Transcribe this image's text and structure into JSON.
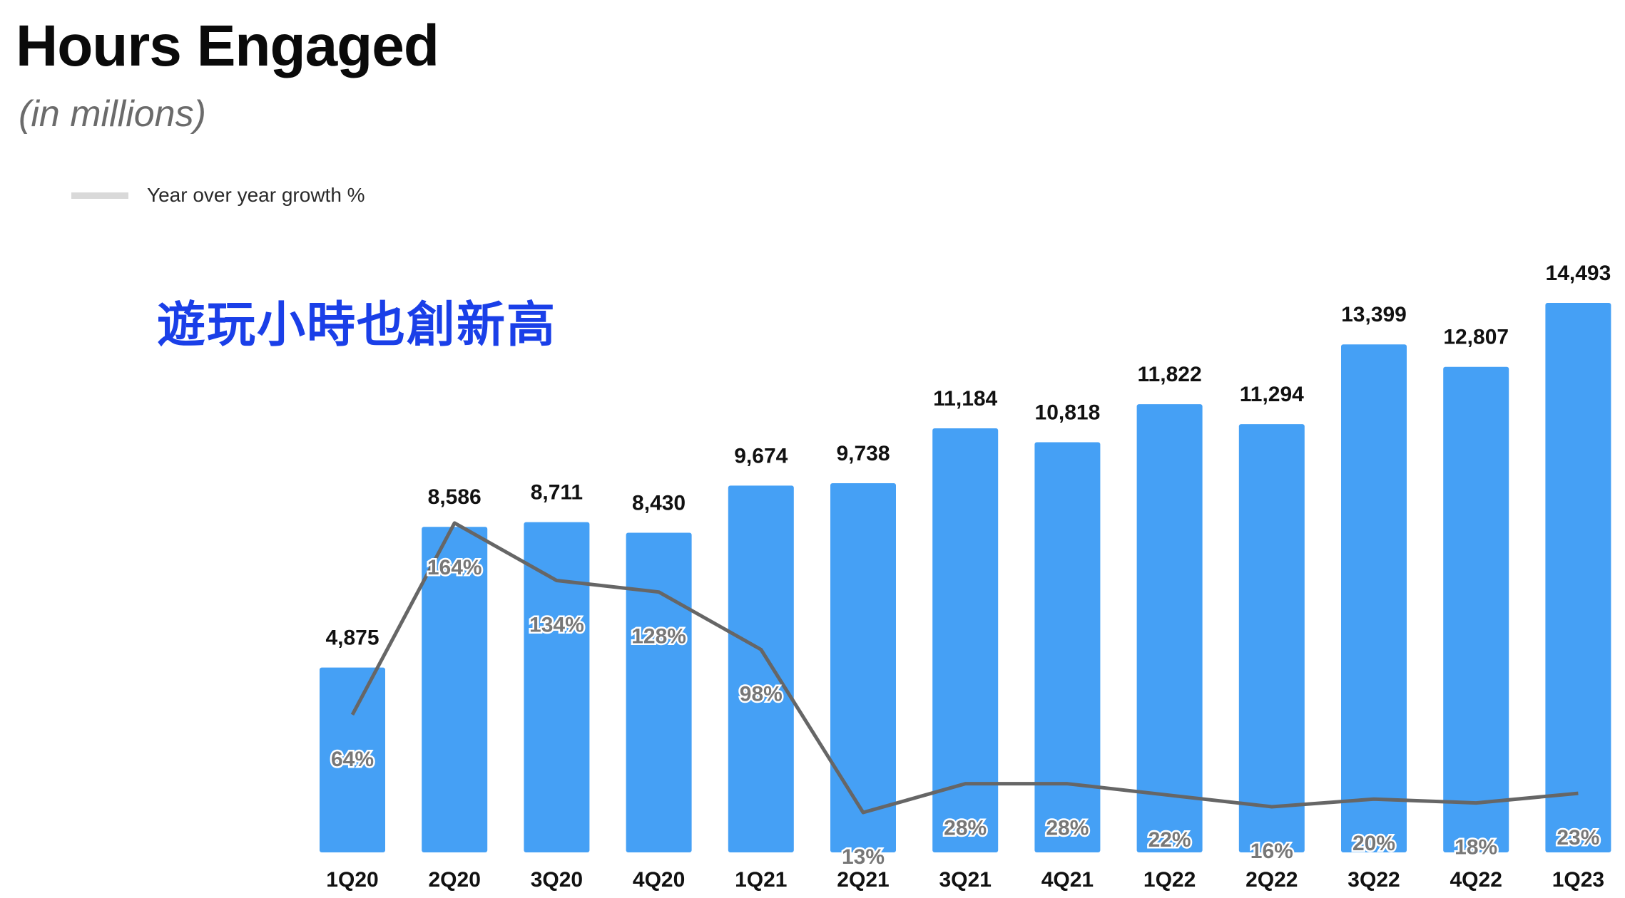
{
  "header": {
    "title": "Hours Engaged",
    "subtitle": "(in millions)"
  },
  "legend": {
    "label": "Year over year growth %",
    "swatch_color": "#d9d9d9"
  },
  "annotation": "遊玩小時也創新高",
  "colors": {
    "bar": "#45a0f5",
    "line": "#666666",
    "annotation": "#1a3fe8"
  },
  "chart_data": {
    "type": "bar",
    "categories": [
      "1Q20",
      "2Q20",
      "3Q20",
      "4Q20",
      "1Q21",
      "2Q21",
      "3Q21",
      "4Q21",
      "1Q22",
      "2Q22",
      "3Q22",
      "4Q22",
      "1Q23"
    ],
    "series": [
      {
        "name": "",
        "type": "bar",
        "values": [
          4875,
          8586,
          8711,
          8430,
          9674,
          9738,
          11184,
          10818,
          11822,
          11294,
          13399,
          12807,
          14493
        ],
        "labels": [
          "4,875",
          "8,586",
          "8,711",
          "8,430",
          "9,674",
          "9,738",
          "11,184",
          "10,818",
          "11,822",
          "11,294",
          "13,399",
          "12,807",
          "14,493"
        ]
      },
      {
        "name": "Year over year growth %",
        "type": "line",
        "values": [
          64,
          164,
          134,
          128,
          98,
          13,
          28,
          28,
          22,
          16,
          20,
          18,
          23
        ],
        "labels": [
          "64%",
          "164%",
          "134%",
          "128%",
          "98%",
          "13%",
          "28%",
          "28%",
          "22%",
          "16%",
          "20%",
          "18%",
          "23%"
        ]
      }
    ],
    "title": "Hours Engaged",
    "subtitle": "(in millions)",
    "ylim": [
      0,
      15000
    ],
    "grid": false,
    "legend_position": "top-left"
  }
}
